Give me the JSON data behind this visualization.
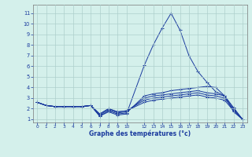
{
  "title": "",
  "xlabel": "Graphe des températures (°c)",
  "ylabel": "",
  "bg_color": "#d4f0eb",
  "grid_color": "#aecfcc",
  "line_color": "#1a3a9e",
  "ylim": [
    0.7,
    11.8
  ],
  "xlim": [
    -0.5,
    23.5
  ],
  "yticks": [
    1,
    2,
    3,
    4,
    5,
    6,
    7,
    8,
    9,
    10,
    11
  ],
  "xticks": [
    0,
    1,
    2,
    3,
    4,
    5,
    6,
    7,
    8,
    9,
    10,
    12,
    13,
    14,
    15,
    16,
    17,
    18,
    19,
    20,
    21,
    22,
    23
  ],
  "series": [
    {
      "x": [
        0,
        1,
        2,
        3,
        4,
        5,
        6,
        7,
        8,
        9,
        10,
        12,
        13,
        14,
        15,
        16,
        17,
        18,
        19,
        20,
        21,
        22,
        23
      ],
      "y": [
        2.6,
        2.3,
        2.2,
        2.2,
        2.2,
        2.2,
        2.3,
        1.3,
        1.7,
        1.4,
        1.5,
        6.1,
        8.0,
        9.6,
        11.0,
        9.4,
        7.0,
        5.5,
        4.5,
        3.6,
        3.2,
        1.7,
        1.0
      ]
    },
    {
      "x": [
        0,
        1,
        2,
        3,
        4,
        5,
        6,
        7,
        8,
        9,
        10,
        12,
        13,
        14,
        15,
        16,
        17,
        18,
        19,
        20,
        21,
        22,
        23
      ],
      "y": [
        2.6,
        2.3,
        2.2,
        2.2,
        2.2,
        2.2,
        2.3,
        1.3,
        1.8,
        1.5,
        1.6,
        3.2,
        3.4,
        3.5,
        3.7,
        3.8,
        3.9,
        4.0,
        4.1,
        4.0,
        3.2,
        2.1,
        1.0
      ]
    },
    {
      "x": [
        0,
        1,
        2,
        3,
        4,
        5,
        6,
        7,
        8,
        9,
        10,
        12,
        13,
        14,
        15,
        16,
        17,
        18,
        19,
        20,
        21,
        22,
        23
      ],
      "y": [
        2.6,
        2.3,
        2.2,
        2.2,
        2.2,
        2.2,
        2.3,
        1.4,
        1.9,
        1.6,
        1.7,
        3.0,
        3.2,
        3.3,
        3.4,
        3.5,
        3.6,
        3.7,
        3.5,
        3.4,
        3.2,
        2.0,
        1.0
      ]
    },
    {
      "x": [
        0,
        1,
        2,
        3,
        4,
        5,
        6,
        7,
        8,
        9,
        10,
        12,
        13,
        14,
        15,
        16,
        17,
        18,
        19,
        20,
        21,
        22,
        23
      ],
      "y": [
        2.6,
        2.3,
        2.2,
        2.2,
        2.2,
        2.2,
        2.3,
        1.5,
        2.0,
        1.7,
        1.8,
        2.8,
        3.0,
        3.1,
        3.2,
        3.3,
        3.4,
        3.5,
        3.3,
        3.2,
        3.0,
        1.9,
        1.0
      ]
    },
    {
      "x": [
        0,
        1,
        2,
        3,
        4,
        5,
        6,
        7,
        8,
        9,
        10,
        12,
        13,
        14,
        15,
        16,
        17,
        18,
        19,
        20,
        21,
        22,
        23
      ],
      "y": [
        2.6,
        2.3,
        2.2,
        2.2,
        2.2,
        2.2,
        2.3,
        1.5,
        2.0,
        1.7,
        1.8,
        2.6,
        2.8,
        2.9,
        3.0,
        3.1,
        3.2,
        3.3,
        3.1,
        3.0,
        2.8,
        1.8,
        1.0
      ]
    }
  ]
}
